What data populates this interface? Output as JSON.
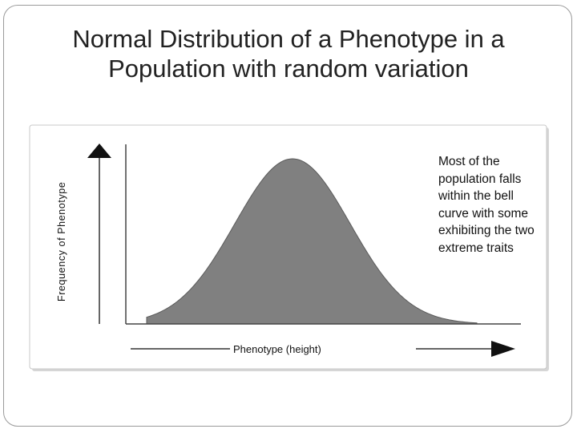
{
  "title": {
    "line1": "Normal Distribution of a Phenotype in a",
    "line2": "Population with random variation"
  },
  "diagram": {
    "y_axis_label": "Frequency of Phenotype",
    "x_axis_label": "Phenotype (height)",
    "curve": "bell-curve",
    "fill_color": "#808080"
  },
  "caption": {
    "lines": [
      "Most of the",
      "population falls",
      "within the bell",
      "curve with some",
      "exhibiting the two",
      "extreme traits"
    ]
  }
}
